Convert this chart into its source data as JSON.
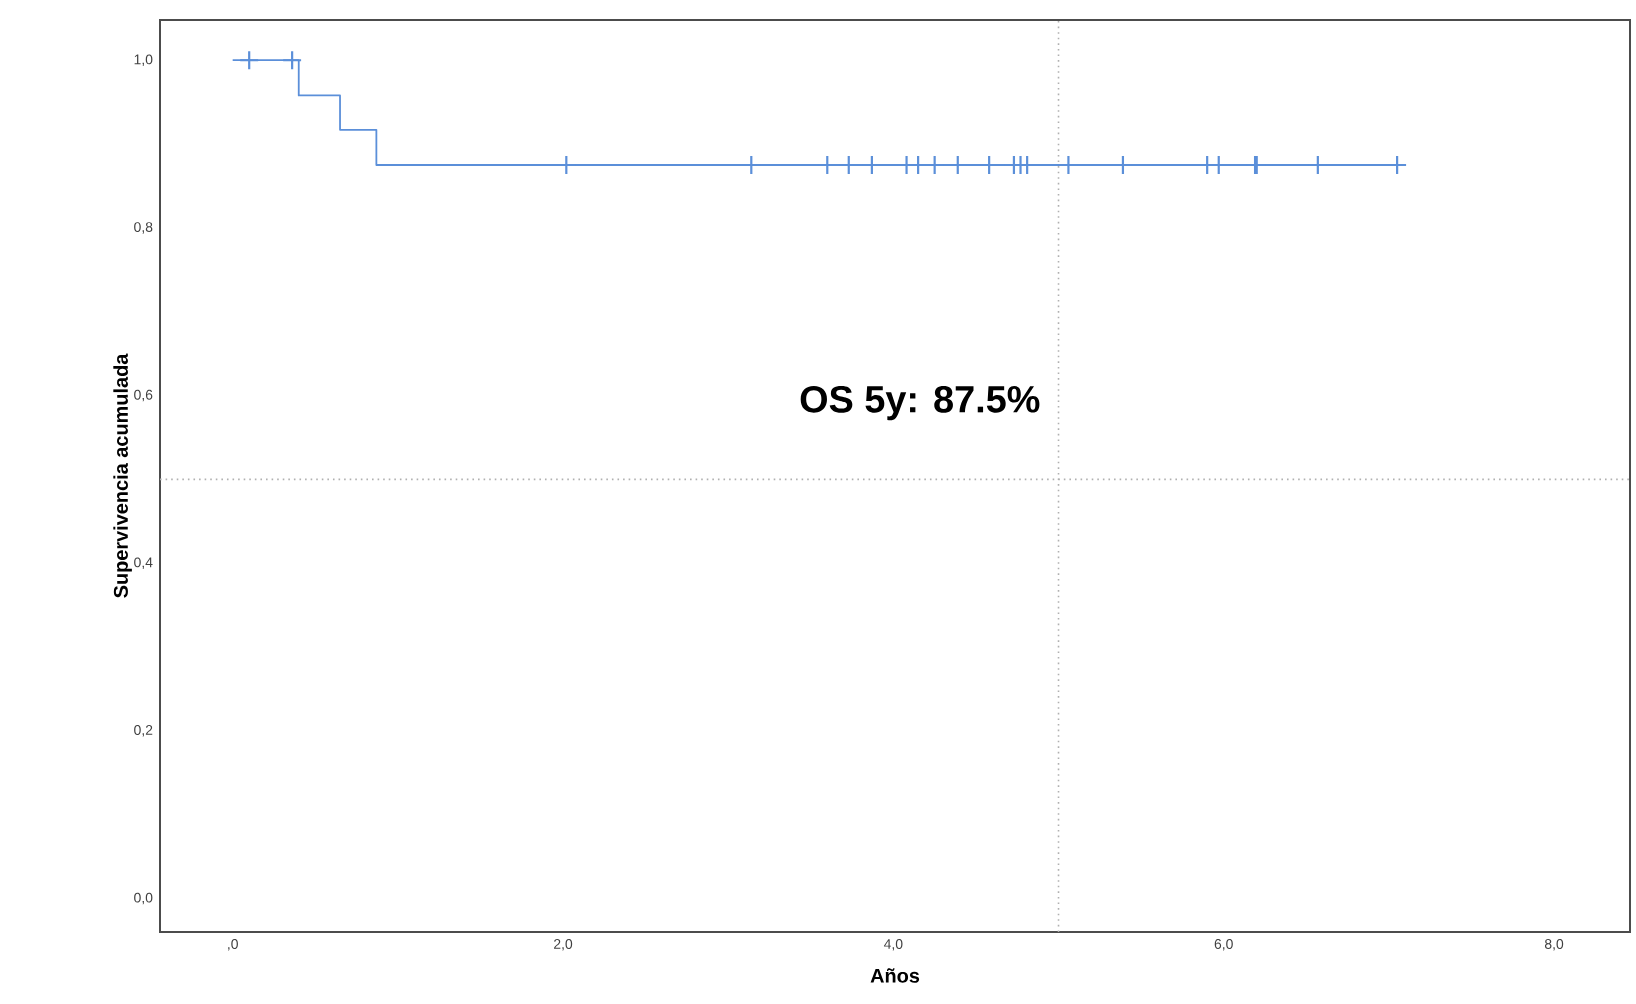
{
  "chart_data": {
    "type": "step",
    "xlabel": "Años",
    "ylabel": "Supervivencia acumulada",
    "annotations": [
      "OS 5y: 87.5%"
    ],
    "series": [
      {
        "color": "#5b8fd9",
        "x": [
          0,
          0.4,
          0.65,
          0.87,
          7.05
        ],
        "values": [
          1,
          0.958,
          0.917,
          0.875,
          0.875
        ],
        "marker": "none"
      },
      {
        "type": "scatter",
        "color": "#5b8fd9",
        "marker": "cross",
        "x": [
          0.1,
          0.36,
          2.02,
          3.14,
          3.6,
          3.73,
          3.87,
          4.08,
          4.15,
          4.25,
          4.39,
          4.58,
          4.73,
          4.77,
          4.81,
          5.06,
          5.39,
          5.9,
          5.97,
          6.19,
          6.2,
          6.57,
          7.05
        ],
        "values": [
          1,
          1,
          0.875,
          0.875,
          0.875,
          0.875,
          0.875,
          0.875,
          0.875,
          0.875,
          0.875,
          0.875,
          0.875,
          0.875,
          0.875,
          0.875,
          0.875,
          0.875,
          0.875,
          0.875,
          0.875,
          0.875,
          0.875
        ]
      }
    ],
    "xlim": [
      -0.44,
      8.46
    ],
    "ylim": [
      -0.04,
      1.048
    ],
    "xticks": [
      {
        "value": 0,
        "label": ",0"
      },
      {
        "value": 2,
        "label": "2,0"
      },
      {
        "value": 4,
        "label": "4,0"
      },
      {
        "value": 6,
        "label": "6,0"
      },
      {
        "value": 8,
        "label": "8,0"
      }
    ],
    "yticks": [
      {
        "value": 0,
        "label": "0,0"
      },
      {
        "value": 0.2,
        "label": "0,2"
      },
      {
        "value": 0.4,
        "label": "0,4"
      },
      {
        "value": 0.6,
        "label": "0,6"
      },
      {
        "value": 0.8,
        "label": "0,8"
      },
      {
        "value": 1,
        "label": "1,0"
      }
    ],
    "ref_lines": [
      {
        "axis": "x",
        "value": 5,
        "color": "#b0b0b0",
        "line_style": "dotted"
      },
      {
        "axis": "y",
        "value": 0.5,
        "color": "#b0b0b0",
        "line_style": "dotted"
      }
    ],
    "grid": false
  }
}
